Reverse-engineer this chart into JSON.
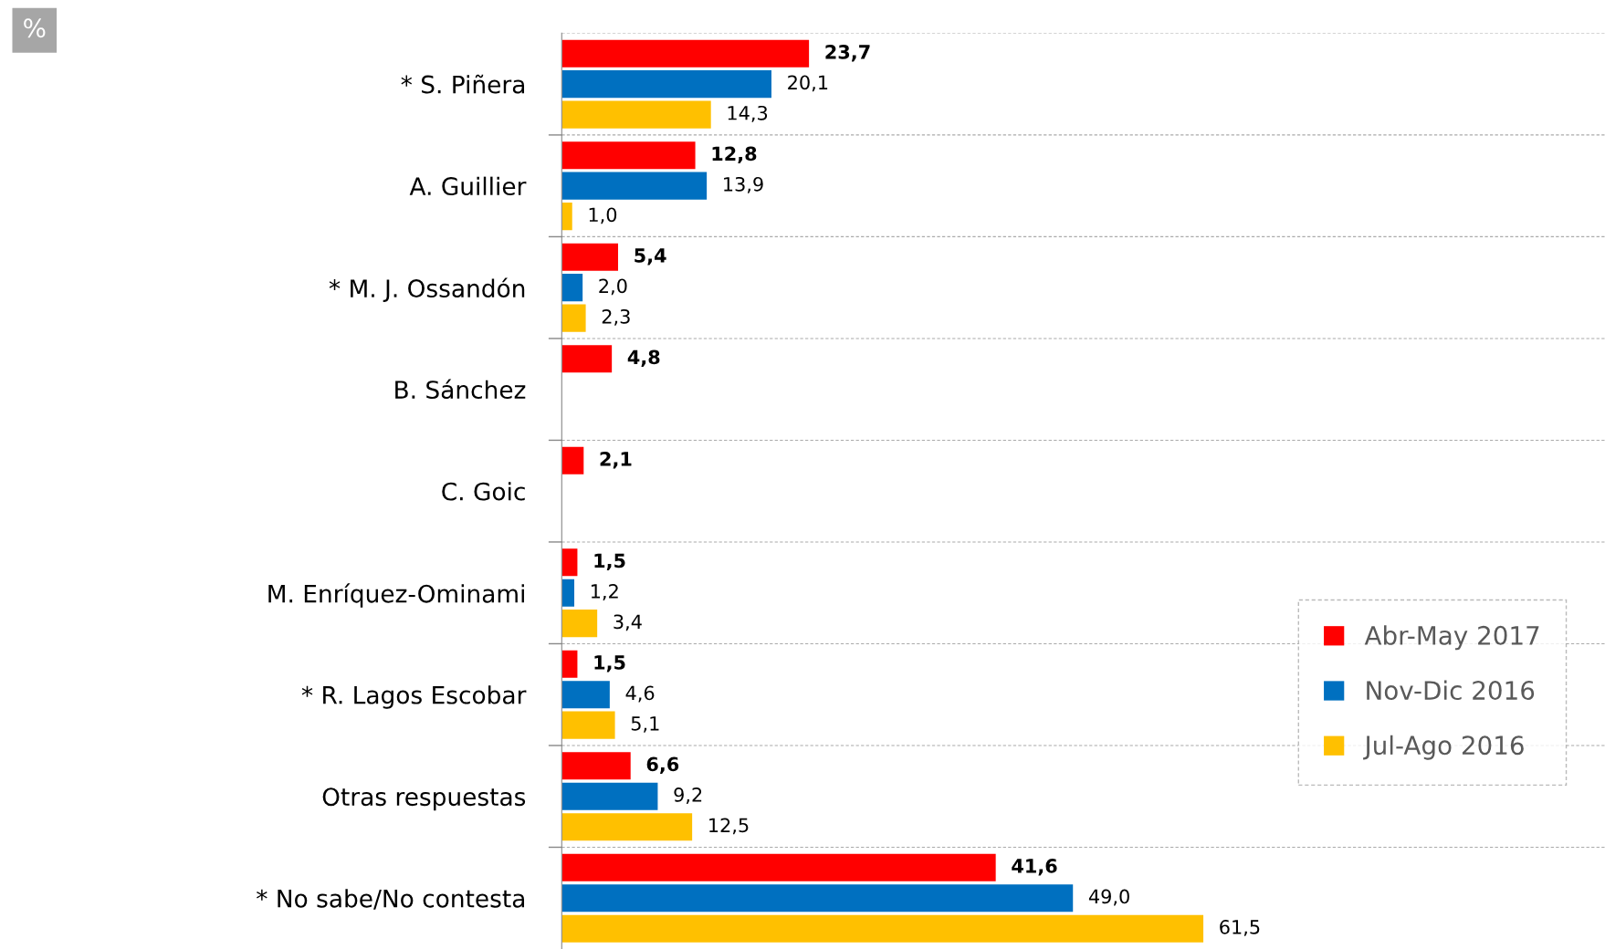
{
  "chart_data": {
    "type": "bar",
    "orientation": "horizontal",
    "categories": [
      "* S. Piñera",
      "A. Guillier",
      "* M. J. Ossandón",
      "B. Sánchez",
      "C. Goic",
      "M. Enríquez-Ominami",
      "* R. Lagos Escobar",
      "Otras respuestas",
      "* No sabe/No contesta"
    ],
    "series": [
      {
        "name": "Abr-May 2017",
        "color": "#ff0000",
        "values": [
          23.7,
          12.8,
          5.4,
          4.8,
          2.1,
          1.5,
          1.5,
          6.6,
          41.6
        ],
        "value_labels": [
          "23,7",
          "12,8",
          "5,4",
          "4,8",
          "2,1",
          "1,5",
          "1,5",
          "6,6",
          "41,6"
        ]
      },
      {
        "name": "Nov-Dic 2016",
        "color": "#0070c0",
        "values": [
          20.1,
          13.9,
          2.0,
          null,
          null,
          1.2,
          4.6,
          9.2,
          49.0
        ],
        "value_labels": [
          "20,1",
          "13,9",
          "2,0",
          null,
          null,
          "1,2",
          "4,6",
          "9,2",
          "49,0"
        ]
      },
      {
        "name": "Jul-Ago 2016",
        "color": "#ffc000",
        "values": [
          14.3,
          1.0,
          2.3,
          null,
          null,
          3.4,
          5.1,
          12.5,
          61.5
        ],
        "value_labels": [
          "14,3",
          "1,0",
          "2,3",
          null,
          null,
          "3,4",
          "5,1",
          "12,5",
          "61,5"
        ]
      }
    ],
    "xlim": [
      0,
      100
    ],
    "tick_labels": "y",
    "grid": "y",
    "legend": "right",
    "annotations": [
      "%"
    ]
  }
}
